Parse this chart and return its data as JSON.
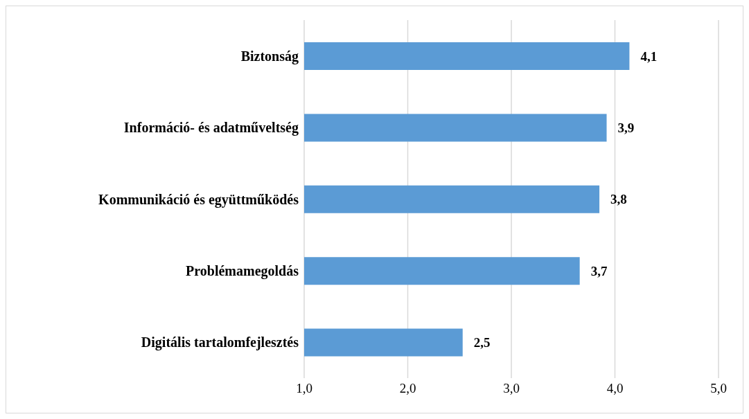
{
  "chart_data": {
    "type": "bar",
    "orientation": "horizontal",
    "categories": [
      "Biztonság",
      "Információ- és adatműveltség",
      "Kommunikáció és együttműködés",
      "Problémamegoldás",
      "Digitális tartalomfejlesztés"
    ],
    "values": [
      4.14,
      3.92,
      3.85,
      3.66,
      2.53
    ],
    "value_labels": [
      "4,1",
      "3,9",
      "3,8",
      "3,7",
      "2,5"
    ],
    "color": "#5b9bd5",
    "xlim": [
      1,
      5
    ],
    "xticks": [
      {
        "value": 1,
        "label": "1,0"
      },
      {
        "value": 2,
        "label": "2,0"
      },
      {
        "value": 3,
        "label": "3,0"
      },
      {
        "value": 4,
        "label": "4,0"
      },
      {
        "value": 5,
        "label": "5,0"
      }
    ],
    "grid": "x"
  }
}
